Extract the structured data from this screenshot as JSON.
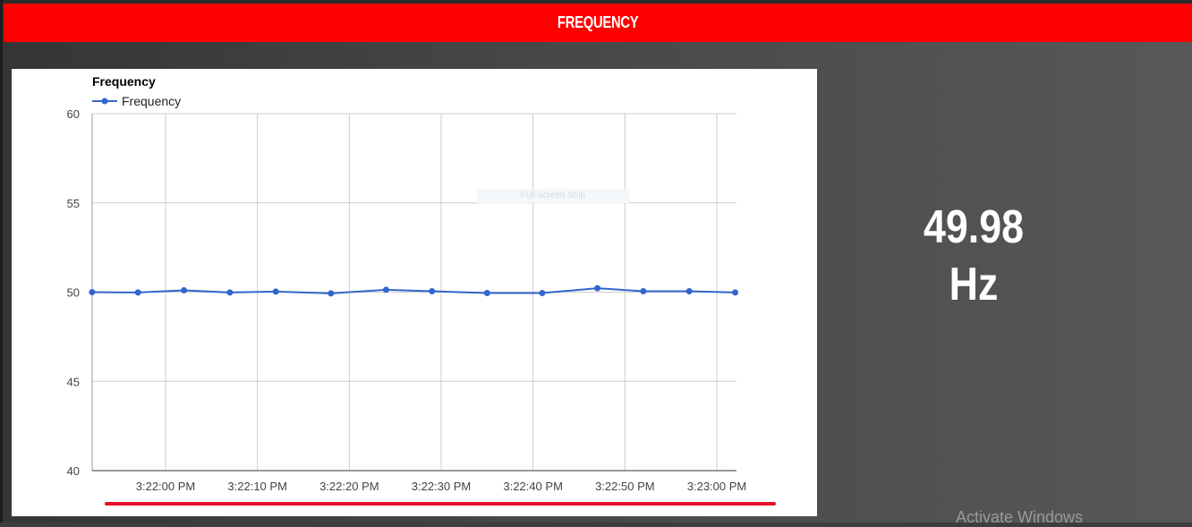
{
  "header": {
    "title": "FREQUENCY",
    "color": "#fe0000"
  },
  "readout": {
    "value": "49.98 Hz"
  },
  "overlay": {
    "snip_text": "Full-screen Snip"
  },
  "watermark": {
    "text": "Activate Windows"
  },
  "chart_data": {
    "type": "line",
    "title": "Frequency",
    "legend": "top-left",
    "grid": true,
    "series": [
      {
        "name": "Frequency",
        "color": "#3366cc",
        "x": [
          "3:21:52",
          "3:21:57",
          "3:22:02",
          "3:22:07",
          "3:22:12",
          "3:22:18",
          "3:22:24",
          "3:22:29",
          "3:22:35",
          "3:22:41",
          "3:22:47",
          "3:22:52",
          "3:22:57",
          "3:23:02"
        ],
        "values": [
          50.0,
          49.98,
          50.1,
          49.98,
          50.03,
          49.93,
          50.13,
          50.05,
          49.95,
          49.95,
          50.22,
          50.05,
          50.05,
          49.98
        ]
      }
    ],
    "yticks": [
      "60",
      "55",
      "50",
      "45",
      "40"
    ],
    "ylim": [
      40,
      60
    ],
    "xticks": [
      "3:22:00 PM",
      "3:22:10 PM",
      "3:22:20 PM",
      "3:22:30 PM",
      "3:22:40 PM",
      "3:22:50 PM",
      "3:23:00 PM"
    ]
  }
}
